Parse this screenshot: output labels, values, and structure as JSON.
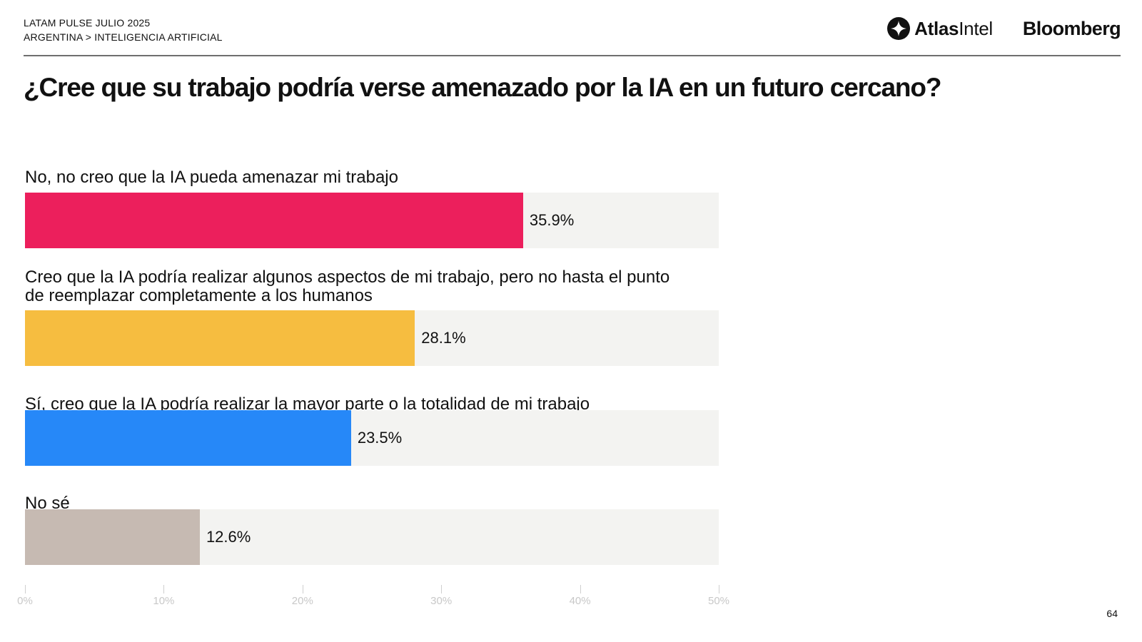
{
  "header": {
    "line1": "LATAM PULSE JULIO 2025",
    "line2": "ARGENTINA > INTELIGENCIA ARTIFICIAL"
  },
  "logos": {
    "atlas_bold": "Atlas",
    "atlas_light": "Intel",
    "bloomberg": "Bloomberg"
  },
  "chart_data": {
    "type": "bar",
    "orientation": "horizontal",
    "title": "¿Cree que su trabajo podría verse amenazado por la IA en un futuro cercano?",
    "categories": [
      "No, no creo que la IA pueda amenazar mi trabajo",
      "Creo que la IA podría realizar algunos aspectos de mi trabajo, pero no hasta el punto de reemplazar completamente a los humanos",
      "Sí, creo que la IA podría realizar la mayor parte o la totalidad de mi trabajo",
      "No sé"
    ],
    "values": [
      35.9,
      28.1,
      23.5,
      12.6
    ],
    "value_labels": [
      "35.9%",
      "28.1%",
      "23.5%",
      "12.6%"
    ],
    "colors": [
      "#ec1f5c",
      "#f6bd40",
      "#2688f8",
      "#c6bab2"
    ],
    "xlim": [
      0,
      50
    ],
    "xticks": [
      "0%",
      "10%",
      "20%",
      "30%",
      "40%",
      "50%"
    ],
    "grid": false,
    "legend": "none"
  },
  "page_number": "64"
}
